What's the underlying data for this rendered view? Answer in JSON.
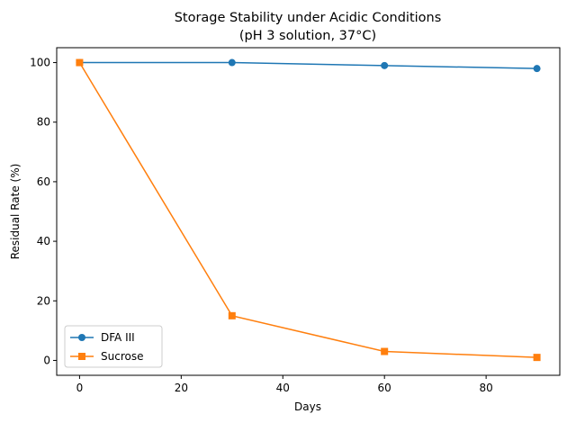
{
  "chart_data": {
    "type": "line",
    "title_lines": [
      "Storage Stability under Acidic Conditions",
      "(pH 3 solution, 37°C)"
    ],
    "xlabel": "Days",
    "ylabel": "Residual Rate (%)",
    "xlim": [
      -4.5,
      94.5
    ],
    "ylim": [
      -5,
      105
    ],
    "xticks": [
      0,
      20,
      40,
      60,
      80
    ],
    "yticks": [
      0,
      20,
      40,
      60,
      80,
      100
    ],
    "x": [
      0,
      30,
      60,
      90
    ],
    "series": [
      {
        "name": "DFA III",
        "values": [
          100,
          100,
          99,
          98
        ],
        "color": "#1f77b4",
        "marker": "circle"
      },
      {
        "name": "Sucrose",
        "values": [
          100,
          15,
          3,
          1
        ],
        "color": "#ff7f0e",
        "marker": "square"
      }
    ],
    "legend_position": "lower-left",
    "grid": false
  }
}
